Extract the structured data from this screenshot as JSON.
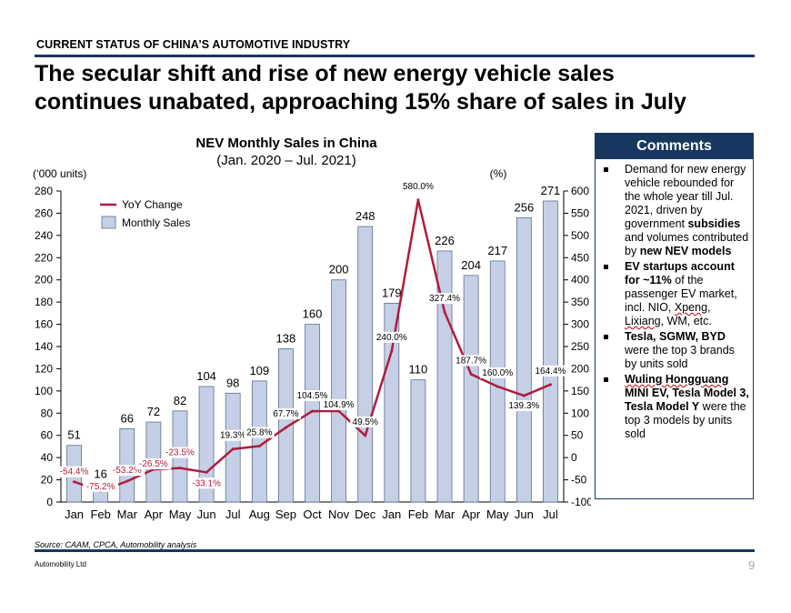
{
  "section_title": "CURRENT STATUS OF CHINA’S AUTOMOTIVE INDUSTRY",
  "headline": {
    "line1": "The secular shift and rise of new energy vehicle sales",
    "line2": "continues unabated,  approaching 15% share of sales in July"
  },
  "chart_data": {
    "type": "bar+line",
    "title": "NEV Monthly Sales in China",
    "subtitle": "(Jan. 2020 – Jul. 2021)",
    "ylabel_left": "(‘000 units)",
    "ylabel_right": "(%)",
    "ylim_left": [
      0,
      280
    ],
    "ylim_right": [
      -100,
      600
    ],
    "yticks_left": [
      0,
      20,
      40,
      60,
      80,
      100,
      120,
      140,
      160,
      180,
      200,
      220,
      240,
      260,
      280
    ],
    "yticks_right": [
      -100,
      -50,
      0,
      50,
      100,
      150,
      200,
      250,
      300,
      350,
      400,
      450,
      500,
      550,
      600
    ],
    "categories": [
      "Jan",
      "Feb",
      "Mar",
      "Apr",
      "May",
      "Jun",
      "Jul",
      "Aug",
      "Sep",
      "Oct",
      "Nov",
      "Dec",
      "Jan",
      "Feb",
      "Mar",
      "Apr",
      "May",
      "Jun",
      "Jul"
    ],
    "legend": "top-left",
    "series": [
      {
        "name": "Monthly Sales",
        "kind": "bar",
        "axis": "left",
        "color": "#c5d0e6",
        "values": [
          51,
          16,
          66,
          72,
          82,
          104,
          98,
          109,
          138,
          160,
          200,
          248,
          179,
          110,
          226,
          204,
          217,
          256,
          271
        ],
        "labels": [
          "51",
          "16",
          "66",
          "72",
          "82",
          "104",
          "98",
          "109",
          "138",
          "160",
          "200",
          "248",
          "179",
          "110",
          "226",
          "204",
          "217",
          "256",
          "271"
        ]
      },
      {
        "name": "YoY Change",
        "kind": "line",
        "axis": "right",
        "color": "#b01c3c",
        "values": [
          -54.4,
          -75.2,
          -53.2,
          -26.5,
          -23.5,
          -33.1,
          19.3,
          25.8,
          67.7,
          104.5,
          104.9,
          49.5,
          240.0,
          580.0,
          327.4,
          187.7,
          160.0,
          139.3,
          164.4
        ],
        "labels": [
          "-54.4%",
          "-75.2%",
          "-53.2%",
          "-26.5%",
          "-23.5%",
          "-33.1%",
          "19.3%",
          "25.8%",
          "67.7%",
          "104.5%",
          "104.9%",
          "49.5%",
          "240.0%",
          "580.0%",
          "327.4%",
          "187.7%",
          "160.0%",
          "139.3%",
          "164.4%"
        ]
      }
    ]
  },
  "comments": {
    "title": "Comments",
    "items": [
      {
        "parts": [
          {
            "t": "Demand for new energy vehicle rebounded for the whole year till Jul. 2021, driven by government "
          },
          {
            "t": "subsidies",
            "b": true
          },
          {
            "t": " and volumes contributed by "
          },
          {
            "t": "new NEV models",
            "b": true
          }
        ]
      },
      {
        "parts": [
          {
            "t": "EV startups account for ~11%",
            "b": true
          },
          {
            "t": " of the passenger EV market, incl. NIO, "
          },
          {
            "t": "Xpeng",
            "w": true
          },
          {
            "t": ", "
          },
          {
            "t": "Lixiang",
            "w": true
          },
          {
            "t": ", WM, etc."
          }
        ]
      },
      {
        "parts": [
          {
            "t": "Tesla, SGMW, BYD",
            "b": true
          },
          {
            "t": " were the top 3 brands by units sold"
          }
        ]
      },
      {
        "parts": [
          {
            "t": "Wuling Hongguang",
            "b": true,
            "w": true
          },
          {
            "t": " MINI EV, Tesla Model 3, Tesla Model Y",
            "b": true
          },
          {
            "t": " were the top 3 models by units sold"
          }
        ]
      }
    ]
  },
  "source": "Source: CAAM, CPCA, Automobility analysis",
  "footer": {
    "company": "Automobility Ltd",
    "page": "9"
  }
}
